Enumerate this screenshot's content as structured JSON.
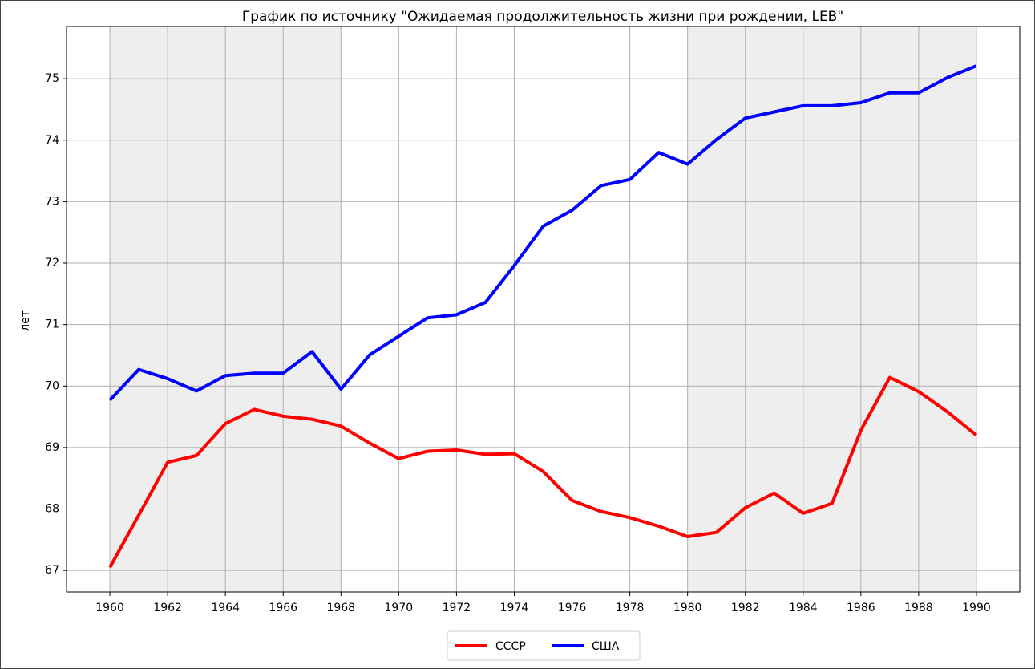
{
  "chart_data": {
    "type": "line",
    "title": "График по источнику \"Ожидаемая продолжительность жизни при рождении, LEB\"",
    "y_label": "лет",
    "x": [
      1960,
      1961,
      1962,
      1963,
      1964,
      1965,
      1966,
      1967,
      1968,
      1969,
      1970,
      1971,
      1972,
      1973,
      1974,
      1975,
      1976,
      1977,
      1978,
      1979,
      1980,
      1981,
      1982,
      1983,
      1984,
      1985,
      1986,
      1987,
      1988,
      1989,
      1990
    ],
    "series": [
      {
        "name": "СССР",
        "color": "#ff0000",
        "values": [
          67.05,
          67.9,
          68.76,
          68.87,
          69.39,
          69.62,
          69.51,
          69.46,
          69.35,
          69.07,
          68.82,
          68.94,
          68.96,
          68.89,
          68.9,
          68.61,
          68.14,
          67.96,
          67.86,
          67.72,
          67.55,
          67.62,
          68.02,
          68.26,
          67.93,
          68.09,
          69.28,
          70.14,
          69.91,
          69.58,
          69.2
        ]
      },
      {
        "name": "США",
        "color": "#0000ff",
        "values": [
          69.77,
          70.27,
          70.12,
          69.92,
          70.17,
          70.21,
          70.21,
          70.56,
          69.95,
          70.51,
          70.81,
          71.11,
          71.16,
          71.36,
          71.96,
          72.6,
          72.86,
          73.26,
          73.36,
          73.8,
          73.61,
          74.01,
          74.36,
          74.46,
          74.56,
          74.56,
          74.61,
          74.77,
          74.77,
          75.02,
          75.21
        ]
      }
    ],
    "shaded_spans": [
      [
        1960,
        1968
      ],
      [
        1980,
        1990
      ]
    ],
    "shade_color": "#eeeeee",
    "xlim": [
      1958.5,
      1991.5
    ],
    "ylim": [
      66.65,
      75.85
    ],
    "xticks": [
      1960,
      1962,
      1964,
      1966,
      1968,
      1970,
      1972,
      1974,
      1976,
      1978,
      1980,
      1982,
      1984,
      1986,
      1988,
      1990
    ],
    "yticks": [
      67,
      68,
      69,
      70,
      71,
      72,
      73,
      74,
      75
    ],
    "grid": true,
    "legend": "lower center outside"
  }
}
